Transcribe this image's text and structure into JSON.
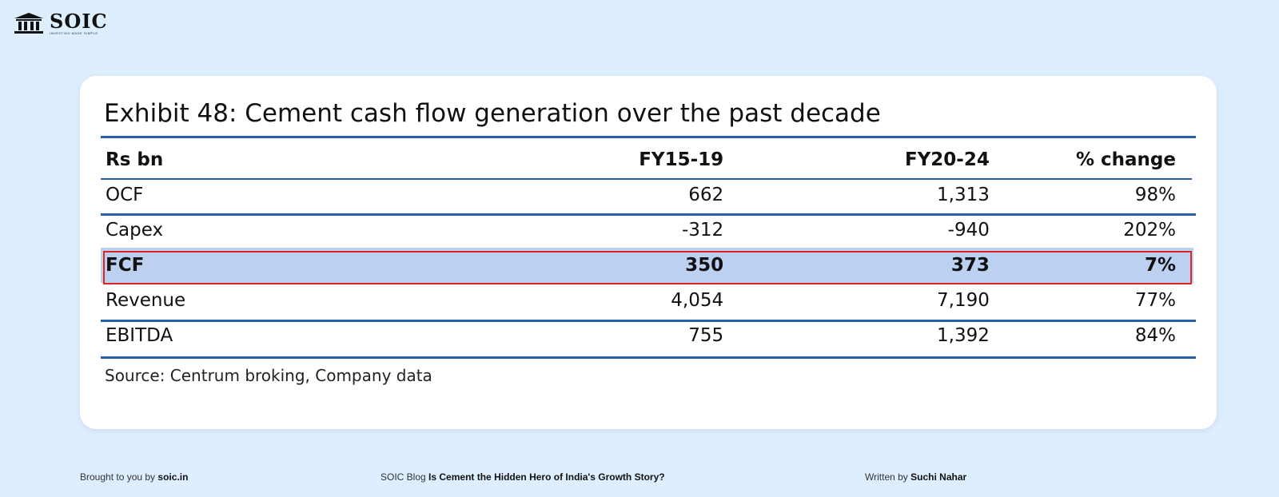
{
  "brand": {
    "name": "SOIC",
    "tagline": "INVESTING MADE SIMPLE",
    "logo_icon": "temple-icon"
  },
  "exhibit": {
    "title": "Exhibit 48: Cement cash flow generation over the past decade",
    "columns": [
      "Rs bn",
      "FY15-19",
      "FY20-24",
      "% change"
    ],
    "rows": [
      {
        "label": "OCF",
        "fy15_19": "662",
        "fy20_24": "1,313",
        "change": "98%"
      },
      {
        "label": "Capex",
        "fy15_19": "-312",
        "fy20_24": "-940",
        "change": "202%"
      },
      {
        "label": "FCF",
        "fy15_19": "350",
        "fy20_24": "373",
        "change": "7%"
      },
      {
        "label": "Revenue",
        "fy15_19": "4,054",
        "fy20_24": "7,190",
        "change": "77%"
      },
      {
        "label": "EBITDA",
        "fy15_19": "755",
        "fy20_24": "1,392",
        "change": "84%"
      }
    ],
    "highlighted_row": "FCF",
    "source": "Source: Centrum broking, Company data",
    "colors": {
      "rule": "#2a5fad",
      "highlight_fill": "#bcd0f2",
      "highlight_border": "#e02424"
    }
  },
  "footer": {
    "brought_prefix": "Brought to you by",
    "brought_site": "soic.in",
    "blog_prefix": "SOIC Blog",
    "blog_title": "Is Cement the Hidden Hero of India's Growth Story?",
    "written_prefix": "Written by",
    "author": "Suchi Nahar"
  },
  "colors": {
    "background": "#ddeeff",
    "card": "#ffffff"
  }
}
